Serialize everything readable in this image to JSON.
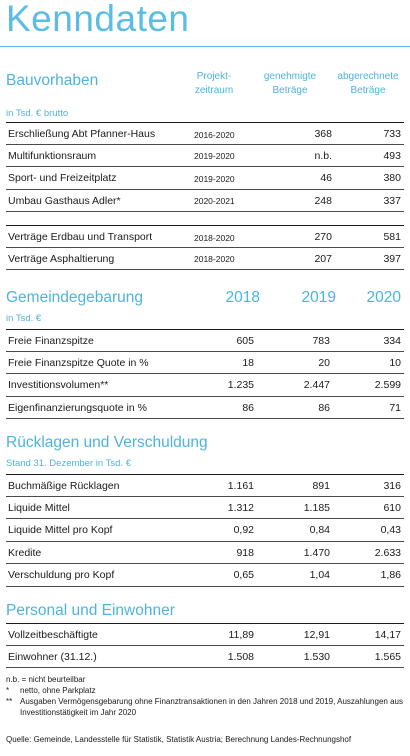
{
  "title": "Kenndaten",
  "bauvorhaben": {
    "title": "Bauvorhaben",
    "unit": "in Tsd. € brutto",
    "col_period": "Projekt-\nzeitraum",
    "col_approved": "genehmigte\nBeträge",
    "col_settled": "abgerechnete\nBeträge",
    "rows": [
      {
        "label": "Erschließung Abt Pfanner-Haus",
        "period": "2016-2020",
        "approved": "368",
        "settled": "733"
      },
      {
        "label": "Multifunktionsraum",
        "period": "2019-2020",
        "approved": "n.b.",
        "settled": "493"
      },
      {
        "label": "Sport- und Freizeitplatz",
        "period": "2019-2020",
        "approved": "46",
        "settled": "380"
      },
      {
        "label": "Umbau Gasthaus Adler*",
        "period": "2020-2021",
        "approved": "248",
        "settled": "337"
      }
    ],
    "rows2": [
      {
        "label": "Verträge Erdbau und Transport",
        "period": "2018-2020",
        "approved": "270",
        "settled": "581"
      },
      {
        "label": "Verträge Asphaltierung",
        "period": "2018-2020",
        "approved": "207",
        "settled": "397"
      }
    ]
  },
  "gemeinde": {
    "title": "Gemeindegebarung",
    "unit": "in Tsd. €",
    "years": [
      "2018",
      "2019",
      "2020"
    ],
    "rows": [
      {
        "label": "Freie Finanzspitze",
        "v": [
          "605",
          "783",
          "334"
        ]
      },
      {
        "label": "Freie Finanzspitze Quote in %",
        "v": [
          "18",
          "20",
          "10"
        ]
      },
      {
        "label": "Investitionsvolumen**",
        "v": [
          "1.235",
          "2.447",
          "2.599"
        ]
      },
      {
        "label": "Eigenfinanzierungsquote in %",
        "v": [
          "86",
          "86",
          "71"
        ]
      }
    ]
  },
  "ruecklagen": {
    "title": "Rücklagen und Verschuldung",
    "unit": "Stand 31. Dezember in Tsd. €",
    "rows": [
      {
        "label": "Buchmäßige Rücklagen",
        "v": [
          "1.161",
          "891",
          "316"
        ]
      },
      {
        "label": "Liquide Mittel",
        "v": [
          "1.312",
          "1.185",
          "610"
        ]
      },
      {
        "label": "Liquide Mittel pro Kopf",
        "v": [
          "0,92",
          "0,84",
          "0,43"
        ]
      },
      {
        "label": "Kredite",
        "v": [
          "918",
          "1.470",
          "2.633"
        ]
      },
      {
        "label": "Verschuldung pro Kopf",
        "v": [
          "0,65",
          "1,04",
          "1,86"
        ]
      }
    ]
  },
  "personal": {
    "title": "Personal und Einwohner",
    "rows": [
      {
        "label": "Vollzeitbeschäftigte",
        "v": [
          "11,89",
          "12,91",
          "14,17"
        ]
      },
      {
        "label": "Einwohner (31.12.)",
        "v": [
          "1.508",
          "1.530",
          "1.565"
        ]
      }
    ]
  },
  "footnotes": {
    "nb": "n.b. = nicht beurteilbar",
    "star_mark": "*",
    "star": "netto, ohne Parkplatz",
    "dstar_mark": "**",
    "dstar": "Ausgaben Vermögensgebarung ohne Finanztransaktionen in den Jahren 2018 und 2019, Auszahlungen aus Investitionstätigkeit im Jahr 2020"
  },
  "source": "Quelle:  Gemeinde, Landesstelle für Statistik, Statistik Austria; Berechnung Landes-Rechnungshof"
}
